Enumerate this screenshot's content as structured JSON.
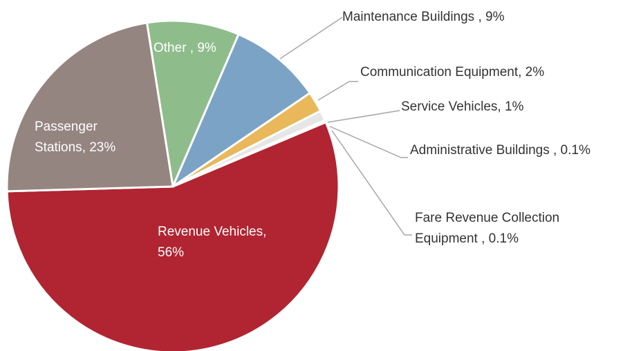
{
  "chart_data": {
    "type": "pie",
    "labels": [
      [
        "Other , 9%"
      ],
      [
        "Maintenance Buildings , 9%"
      ],
      [
        "Communication Equipment, 2%"
      ],
      [
        "Service Vehicles, 1%"
      ],
      [
        "Administrative Buildings , 0.1%"
      ],
      [
        "Fare Revenue Collection",
        "Equipment , 0.1%"
      ],
      [
        "Revenue Vehicles,",
        "56%"
      ],
      [
        "Passenger",
        "Stations, 23%"
      ]
    ],
    "values": [
      9,
      9,
      2,
      1,
      0.1,
      0.1,
      56,
      23
    ],
    "colors": [
      "#8fbc8b",
      "#7ba3c6",
      "#e8b85a",
      "#e6e6e6",
      "#dcdcdc",
      "#f0f0f0",
      "#b02531",
      "#958580"
    ]
  }
}
